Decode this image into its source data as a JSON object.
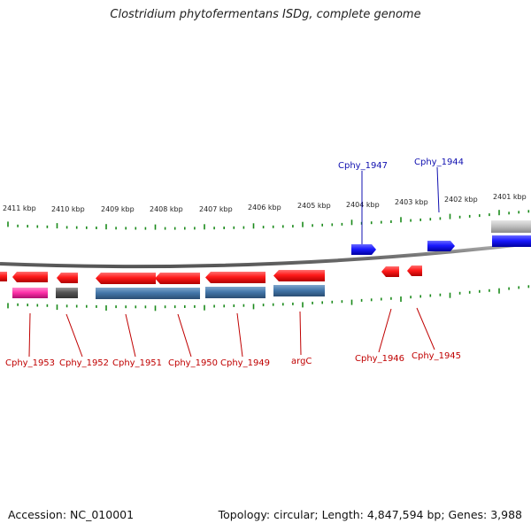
{
  "title": "Clostridium phytofermentans ISDg, complete genome",
  "footer": {
    "accession": "Accession: NC_010001",
    "stats": "Topology: circular; Length: 4,847,594 bp; Genes: 3,988"
  },
  "colors": {
    "forward_gene": "#1a1aff",
    "reverse_gene": "#ff1a1a",
    "rna_pink": "#ff33aa",
    "pseudo_gray": "#555555",
    "cds_blue": "#4477aa",
    "tick_green": "#1a8a1a",
    "backbone_gray": "#888888",
    "label_forward": "#1010b0",
    "label_reverse": "#c00000"
  },
  "scale_labels": [
    "2411 kbp",
    "2410 kbp",
    "2409 kbp",
    "2408 kbp",
    "2407 kbp",
    "2406 kbp",
    "2405 kbp",
    "2404 kbp",
    "2403 kbp",
    "2402 kbp",
    "2401 kbp"
  ],
  "labels_forward": [
    "Cphy_1947",
    "Cphy_1944"
  ],
  "labels_reverse": [
    "Cphy_1953",
    "Cphy_1952",
    "Cphy_1951",
    "Cphy_1950",
    "Cphy_1949",
    "argC",
    "Cphy_1946",
    "Cphy_1945"
  ]
}
